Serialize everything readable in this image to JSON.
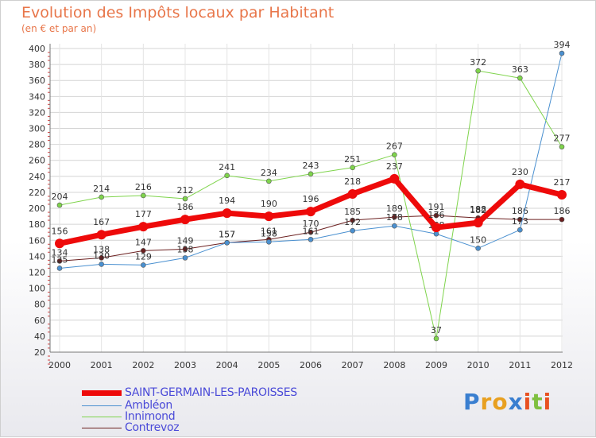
{
  "page": {
    "title": "Evolution des Impôts locaux par Habitant",
    "subtitle": "(en € et par an)"
  },
  "chart_data": {
    "type": "line",
    "title": "Evolution des Impôts locaux par Habitant",
    "subtitle": "(en € et par an)",
    "xlabel": "",
    "ylabel": "",
    "x": [
      "2000",
      "2001",
      "2002",
      "2003",
      "2004",
      "2005",
      "2006",
      "2007",
      "2008",
      "2009",
      "2010",
      "2011",
      "2012"
    ],
    "ylim": [
      20,
      400
    ],
    "yticks": [
      20,
      40,
      60,
      80,
      100,
      120,
      140,
      160,
      180,
      200,
      220,
      240,
      260,
      280,
      300,
      320,
      340,
      360,
      380,
      400
    ],
    "grid": true,
    "series": [
      {
        "name": "Contrevoz",
        "color": "#6b1f1f",
        "width": 1,
        "values": [
          134,
          138,
          147,
          149,
          157,
          161,
          170,
          185,
          189,
          191,
          188,
          186,
          186
        ],
        "labels": [
          "134",
          "138",
          "147",
          "149",
          "157",
          "161",
          "170",
          "185",
          "189",
          "191",
          "188",
          "186",
          "186"
        ]
      },
      {
        "name": "Ambléon",
        "color": "#4a90d0",
        "width": 1,
        "values": [
          125,
          130,
          129,
          138,
          157,
          158,
          161,
          172,
          178,
          168,
          150,
          173,
          394
        ],
        "labels": [
          "125",
          "130",
          "129",
          "138",
          "157",
          "158",
          "161",
          "172",
          "178",
          "168",
          "150",
          "173",
          "394"
        ]
      },
      {
        "name": "Innimond",
        "color": "#7fd44c",
        "width": 1,
        "values": [
          204,
          214,
          216,
          212,
          241,
          234,
          243,
          251,
          267,
          37,
          372,
          363,
          277
        ],
        "labels": [
          "204",
          "214",
          "216",
          "212",
          "241",
          "234",
          "243",
          "251",
          "267",
          "37",
          "372",
          "363",
          "277"
        ]
      },
      {
        "name": "SAINT-GERMAIN-LES-PAROISSES",
        "color": "#ee0a0a",
        "width": 7,
        "values": [
          156,
          167,
          177,
          186,
          194,
          190,
          196,
          218,
          237,
          176,
          182,
          230,
          217
        ],
        "labels": [
          "156",
          "167",
          "177",
          "186",
          "194",
          "190",
          "196",
          "218",
          "237",
          "176",
          "182",
          "230",
          "217"
        ]
      }
    ],
    "legend": [
      "SAINT-GERMAIN-LES-PAROISSES",
      "Ambléon",
      "Innimond",
      "Contrevoz"
    ]
  },
  "legend": [
    {
      "label": "SAINT-GERMAIN-LES-PAROISSES",
      "color": "#ee0a0a"
    },
    {
      "label": "Ambléon",
      "color": "#4a90d0"
    },
    {
      "label": "Innimond",
      "color": "#7fd44c"
    },
    {
      "label": "Contrevoz",
      "color": "#6b1f1f"
    }
  ],
  "logo": {
    "letters": [
      "P",
      "r",
      "o",
      "x",
      "i",
      "t",
      "i"
    ],
    "colors": [
      "#3a7fd0",
      "#e8a020",
      "#e8a020",
      "#3a7fd0",
      "#e85020",
      "#7fc040",
      "#e85020"
    ]
  }
}
